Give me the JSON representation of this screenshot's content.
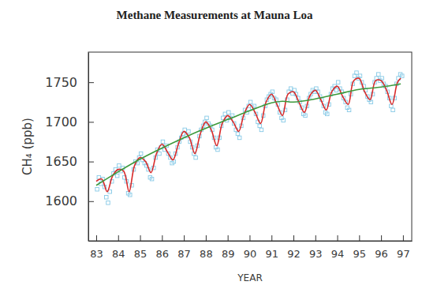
{
  "chart_data": {
    "type": "line",
    "title": "Methane Measurements at Mauna Loa",
    "x_label": "YEAR",
    "y_label": "CH₄ (ppb)",
    "xlim": [
      82.64,
      97.4
    ],
    "ylim": [
      1550,
      1788
    ],
    "xticks": [
      83,
      84,
      85,
      86,
      87,
      88,
      89,
      90,
      91,
      92,
      93,
      94,
      95,
      96,
      97
    ],
    "yticks": [
      1600,
      1650,
      1700,
      1750
    ],
    "grid": false,
    "series": [
      {
        "type": "scatter",
        "color": "#86c9e6",
        "marker": "square",
        "x": [
          83.04,
          83.12,
          83.21,
          83.29,
          83.38,
          83.46,
          83.54,
          83.62,
          83.71,
          83.79,
          83.88,
          83.96,
          84.04,
          84.12,
          84.21,
          84.29,
          84.38,
          84.46,
          84.54,
          84.62,
          84.71,
          84.79,
          84.88,
          84.96,
          85.04,
          85.12,
          85.21,
          85.29,
          85.38,
          85.46,
          85.54,
          85.62,
          85.71,
          85.79,
          85.88,
          85.96,
          86.04,
          86.12,
          86.21,
          86.29,
          86.38,
          86.46,
          86.54,
          86.62,
          86.71,
          86.79,
          86.88,
          86.96,
          87.04,
          87.12,
          87.21,
          87.29,
          87.38,
          87.46,
          87.54,
          87.62,
          87.71,
          87.79,
          87.88,
          87.96,
          88.04,
          88.12,
          88.21,
          88.29,
          88.38,
          88.46,
          88.54,
          88.62,
          88.71,
          88.79,
          88.88,
          88.96,
          89.04,
          89.12,
          89.21,
          89.29,
          89.38,
          89.46,
          89.54,
          89.62,
          89.71,
          89.79,
          89.88,
          89.96,
          90.04,
          90.12,
          90.21,
          90.29,
          90.38,
          90.46,
          90.54,
          90.62,
          90.71,
          90.79,
          90.88,
          90.96,
          91.04,
          91.12,
          91.21,
          91.29,
          91.38,
          91.46,
          91.54,
          91.62,
          91.71,
          91.79,
          91.88,
          91.96,
          92.04,
          92.12,
          92.21,
          92.29,
          92.38,
          92.46,
          92.54,
          92.62,
          92.71,
          92.79,
          92.88,
          92.96,
          93.04,
          93.12,
          93.21,
          93.29,
          93.38,
          93.46,
          93.54,
          93.62,
          93.71,
          93.79,
          93.88,
          93.96,
          94.04,
          94.12,
          94.21,
          94.29,
          94.38,
          94.46,
          94.54,
          94.62,
          94.71,
          94.79,
          94.88,
          94.96,
          95.04,
          95.12,
          95.21,
          95.29,
          95.38,
          95.46,
          95.54,
          95.62,
          95.71,
          95.79,
          95.88,
          95.96,
          96.04,
          96.12,
          96.21,
          96.29,
          96.38,
          96.46,
          96.54,
          96.62,
          96.71,
          96.79,
          96.88,
          96.96
        ],
        "values": [
          1615,
          1630,
          1622,
          1628,
          1618,
          1605,
          1598,
          1612,
          1625,
          1635,
          1640,
          1632,
          1645,
          1638,
          1642,
          1630,
          1625,
          1610,
          1608,
          1620,
          1640,
          1650,
          1648,
          1655,
          1660,
          1652,
          1648,
          1645,
          1640,
          1630,
          1628,
          1642,
          1655,
          1665,
          1660,
          1668,
          1675,
          1665,
          1670,
          1660,
          1655,
          1648,
          1650,
          1660,
          1668,
          1675,
          1680,
          1685,
          1690,
          1682,
          1688,
          1675,
          1668,
          1660,
          1655,
          1670,
          1682,
          1690,
          1695,
          1700,
          1705,
          1698,
          1695,
          1690,
          1680,
          1668,
          1665,
          1680,
          1695,
          1705,
          1710,
          1702,
          1712,
          1705,
          1708,
          1698,
          1690,
          1685,
          1680,
          1695,
          1705,
          1715,
          1712,
          1720,
          1725,
          1718,
          1720,
          1710,
          1700,
          1695,
          1690,
          1708,
          1720,
          1728,
          1732,
          1735,
          1738,
          1730,
          1728,
          1722,
          1712,
          1705,
          1702,
          1715,
          1728,
          1738,
          1742,
          1736,
          1740,
          1735,
          1730,
          1725,
          1718,
          1710,
          1708,
          1720,
          1730,
          1735,
          1740,
          1738,
          1742,
          1738,
          1732,
          1728,
          1720,
          1712,
          1710,
          1722,
          1735,
          1742,
          1745,
          1740,
          1750,
          1742,
          1738,
          1730,
          1725,
          1718,
          1715,
          1735,
          1748,
          1758,
          1762,
          1755,
          1758,
          1750,
          1745,
          1740,
          1732,
          1728,
          1725,
          1735,
          1750,
          1755,
          1760,
          1752,
          1755,
          1748,
          1745,
          1738,
          1730,
          1720,
          1715,
          1730,
          1748,
          1755,
          1760,
          1758
        ]
      },
      {
        "type": "line",
        "color": "#d82a2a",
        "line_style": "solid",
        "x": [
          83.0,
          83.25,
          83.5,
          83.75,
          84.0,
          84.25,
          84.5,
          84.75,
          85.0,
          85.25,
          85.5,
          85.75,
          86.0,
          86.25,
          86.5,
          86.75,
          87.0,
          87.25,
          87.5,
          87.75,
          88.0,
          88.25,
          88.5,
          88.75,
          89.0,
          89.25,
          89.5,
          89.75,
          90.0,
          90.25,
          90.5,
          90.75,
          91.0,
          91.25,
          91.5,
          91.75,
          92.0,
          92.25,
          92.5,
          92.75,
          93.0,
          93.25,
          93.5,
          93.75,
          94.0,
          94.25,
          94.5,
          94.75,
          95.0,
          95.25,
          95.5,
          95.75,
          96.0,
          96.25,
          96.5,
          96.75,
          96.9
        ],
        "values": [
          1625,
          1628,
          1612,
          1632,
          1640,
          1638,
          1612,
          1645,
          1655,
          1650,
          1636,
          1660,
          1672,
          1662,
          1652,
          1672,
          1688,
          1680,
          1660,
          1685,
          1700,
          1690,
          1670,
          1698,
          1708,
          1700,
          1688,
          1710,
          1722,
          1712,
          1698,
          1725,
          1735,
          1722,
          1708,
          1735,
          1738,
          1725,
          1712,
          1733,
          1740,
          1728,
          1715,
          1738,
          1745,
          1732,
          1722,
          1752,
          1755,
          1738,
          1728,
          1752,
          1752,
          1740,
          1722,
          1750,
          1755
        ]
      },
      {
        "type": "line",
        "color": "#3c9a3c",
        "line_style": "solid",
        "x": [
          83.0,
          84.0,
          85.0,
          86.0,
          87.0,
          88.0,
          89.0,
          90.0,
          91.0,
          91.5,
          92.0,
          93.0,
          94.0,
          95.0,
          96.0,
          96.9
        ],
        "values": [
          1620,
          1637,
          1653,
          1667,
          1680,
          1692,
          1703,
          1714,
          1724,
          1726,
          1725,
          1729,
          1735,
          1741,
          1744,
          1748
        ]
      }
    ]
  }
}
